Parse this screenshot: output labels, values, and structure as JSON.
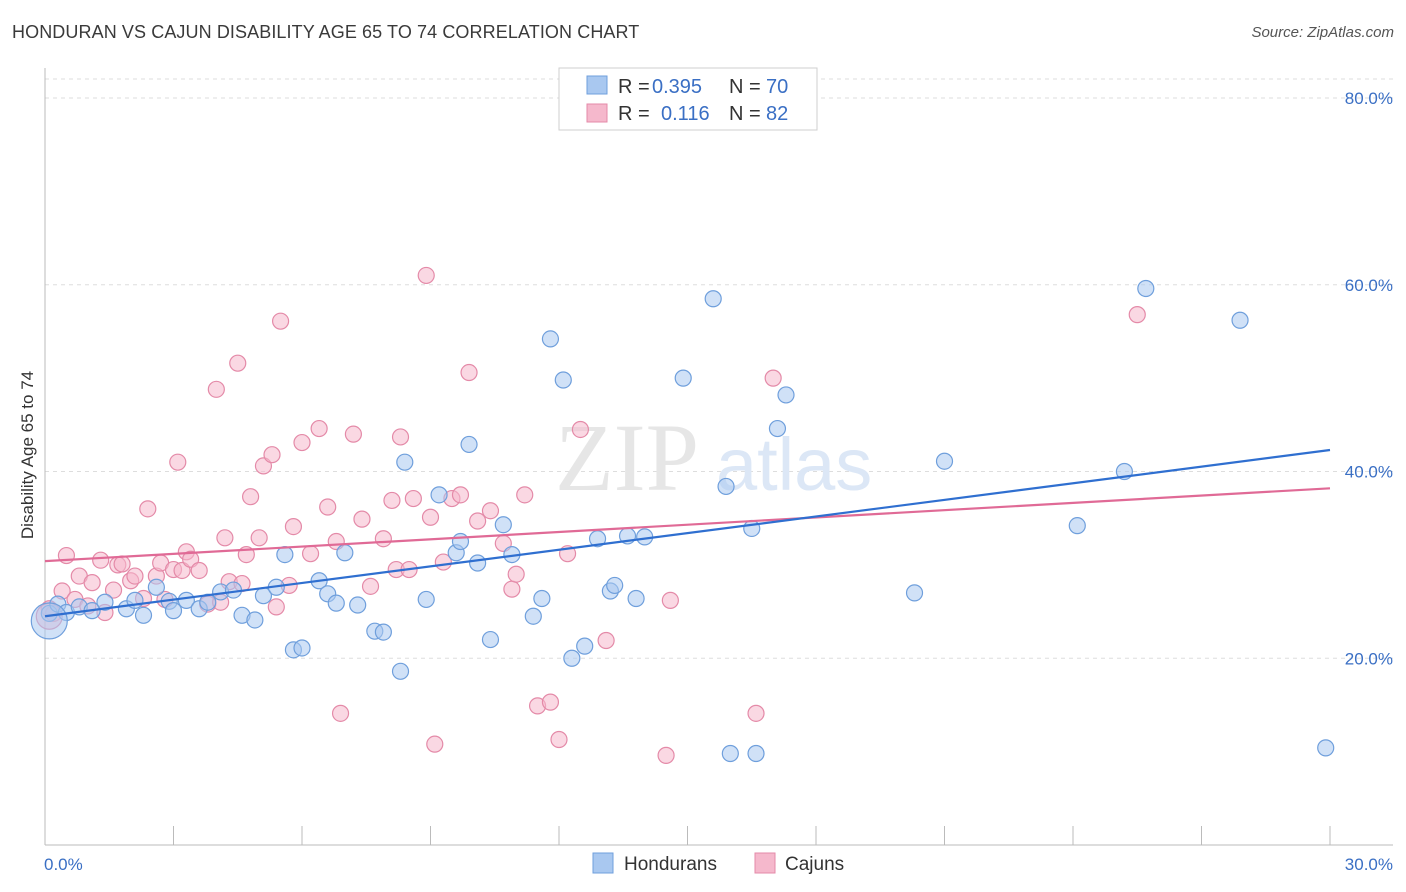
{
  "title": "HONDURAN VS CAJUN DISABILITY AGE 65 TO 74 CORRELATION CHART",
  "source": "Source: ZipAtlas.com",
  "watermark": {
    "zip": "ZIP",
    "atlas": "atlas"
  },
  "colors": {
    "blue_fill": "#a9c8f0",
    "blue_stroke": "#6f9fdc",
    "blue_line": "#2f6fd0",
    "pink_fill": "#f5b8cc",
    "pink_stroke": "#e48aa8",
    "pink_line": "#e06a96",
    "grid": "#dddddd",
    "tick_text": "#3a6fc4"
  },
  "legend": {
    "rows": [
      {
        "r_label": "R =",
        "r_value": "0.395",
        "n_label": "N =",
        "n_value": "70"
      },
      {
        "r_label": "R =",
        "r_value": "0.116",
        "n_label": "N =",
        "n_value": "82"
      }
    ]
  },
  "bottom_legend": [
    "Hondurans",
    "Cajuns"
  ],
  "chart_data": {
    "type": "scatter",
    "title": "HONDURAN VS CAJUN DISABILITY AGE 65 TO 74 CORRELATION CHART",
    "xlabel": "",
    "ylabel": "Disability Age 65 to 74",
    "xlim": [
      0,
      30
    ],
    "ylim": [
      0,
      84
    ],
    "x_tick_labels": [
      "0.0%",
      "30.0%"
    ],
    "y_ticks": [
      20,
      40,
      60,
      80
    ],
    "y_tick_labels": [
      "20.0%",
      "40.0%",
      "60.0%",
      "80.0%"
    ],
    "grid": true,
    "legend_position": "top-center",
    "series": [
      {
        "name": "Hondurans",
        "R": 0.395,
        "N": 70,
        "trend": {
          "x": [
            0,
            30
          ],
          "y": [
            24.5,
            42.3
          ]
        },
        "points": [
          [
            0.1,
            24.8
          ],
          [
            0.3,
            25.8
          ],
          [
            0.5,
            24.9
          ],
          [
            0.8,
            25.5
          ],
          [
            1.1,
            25.1
          ],
          [
            1.4,
            26.0
          ],
          [
            1.9,
            25.3
          ],
          [
            2.1,
            26.2
          ],
          [
            2.3,
            24.6
          ],
          [
            2.6,
            27.6
          ],
          [
            2.9,
            26.1
          ],
          [
            3.0,
            25.1
          ],
          [
            3.3,
            26.2
          ],
          [
            3.6,
            25.3
          ],
          [
            3.8,
            26.0
          ],
          [
            4.1,
            27.1
          ],
          [
            4.4,
            27.3
          ],
          [
            4.6,
            24.6
          ],
          [
            4.9,
            24.1
          ],
          [
            5.1,
            26.7
          ],
          [
            5.4,
            27.6
          ],
          [
            5.6,
            31.1
          ],
          [
            5.8,
            20.9
          ],
          [
            6.0,
            21.1
          ],
          [
            6.4,
            28.3
          ],
          [
            6.6,
            26.9
          ],
          [
            6.8,
            25.9
          ],
          [
            7.0,
            31.3
          ],
          [
            7.3,
            25.7
          ],
          [
            7.7,
            22.9
          ],
          [
            7.9,
            22.8
          ],
          [
            8.3,
            18.6
          ],
          [
            8.4,
            41.0
          ],
          [
            8.9,
            26.3
          ],
          [
            9.2,
            37.5
          ],
          [
            9.6,
            31.3
          ],
          [
            9.7,
            32.5
          ],
          [
            9.9,
            42.9
          ],
          [
            10.1,
            30.2
          ],
          [
            10.4,
            22.0
          ],
          [
            10.7,
            34.3
          ],
          [
            10.9,
            31.1
          ],
          [
            11.4,
            24.5
          ],
          [
            11.6,
            26.4
          ],
          [
            11.8,
            54.2
          ],
          [
            12.1,
            49.8
          ],
          [
            12.3,
            20.0
          ],
          [
            12.6,
            21.3
          ],
          [
            12.9,
            32.8
          ],
          [
            13.2,
            27.2
          ],
          [
            13.3,
            27.8
          ],
          [
            13.6,
            33.1
          ],
          [
            13.8,
            26.4
          ],
          [
            14.0,
            33.0
          ],
          [
            14.9,
            50.0
          ],
          [
            15.6,
            58.5
          ],
          [
            15.9,
            38.4
          ],
          [
            16.0,
            9.8
          ],
          [
            16.5,
            33.9
          ],
          [
            16.6,
            9.8
          ],
          [
            17.1,
            44.6
          ],
          [
            17.3,
            48.2
          ],
          [
            20.3,
            27.0
          ],
          [
            21.0,
            41.1
          ],
          [
            24.1,
            34.2
          ],
          [
            25.2,
            40.0
          ],
          [
            25.7,
            59.6
          ],
          [
            27.9,
            56.2
          ],
          [
            29.9,
            10.4
          ],
          [
            0.1,
            24.0
          ]
        ]
      },
      {
        "name": "Cajuns",
        "R": 0.116,
        "N": 82,
        "trend": {
          "x": [
            0,
            30
          ],
          "y": [
            30.4,
            38.2
          ]
        },
        "points": [
          [
            0.1,
            25.3
          ],
          [
            0.2,
            24.8
          ],
          [
            0.4,
            27.2
          ],
          [
            0.5,
            31.0
          ],
          [
            0.7,
            26.3
          ],
          [
            0.8,
            28.8
          ],
          [
            1.0,
            25.6
          ],
          [
            1.1,
            28.1
          ],
          [
            1.3,
            30.5
          ],
          [
            1.4,
            24.9
          ],
          [
            1.6,
            27.3
          ],
          [
            1.7,
            30.0
          ],
          [
            1.8,
            30.1
          ],
          [
            2.0,
            28.3
          ],
          [
            2.1,
            28.8
          ],
          [
            2.3,
            26.4
          ],
          [
            2.4,
            36.0
          ],
          [
            2.6,
            28.8
          ],
          [
            2.7,
            30.2
          ],
          [
            2.8,
            26.3
          ],
          [
            3.0,
            29.5
          ],
          [
            3.1,
            41.0
          ],
          [
            3.2,
            29.4
          ],
          [
            3.3,
            31.4
          ],
          [
            3.4,
            30.6
          ],
          [
            3.6,
            29.4
          ],
          [
            3.8,
            25.8
          ],
          [
            4.0,
            48.8
          ],
          [
            4.1,
            26.0
          ],
          [
            4.2,
            32.9
          ],
          [
            4.3,
            28.2
          ],
          [
            4.5,
            51.6
          ],
          [
            4.6,
            28.0
          ],
          [
            4.7,
            31.1
          ],
          [
            4.8,
            37.3
          ],
          [
            5.0,
            32.9
          ],
          [
            5.1,
            40.6
          ],
          [
            5.3,
            41.8
          ],
          [
            5.4,
            25.5
          ],
          [
            5.5,
            56.1
          ],
          [
            5.7,
            27.8
          ],
          [
            5.8,
            34.1
          ],
          [
            6.0,
            43.1
          ],
          [
            6.2,
            31.2
          ],
          [
            6.4,
            44.6
          ],
          [
            6.6,
            36.2
          ],
          [
            6.8,
            32.5
          ],
          [
            6.9,
            14.1
          ],
          [
            7.2,
            44.0
          ],
          [
            7.4,
            34.9
          ],
          [
            7.6,
            27.7
          ],
          [
            7.9,
            32.8
          ],
          [
            8.1,
            36.9
          ],
          [
            8.2,
            29.5
          ],
          [
            8.3,
            43.7
          ],
          [
            8.5,
            29.5
          ],
          [
            8.6,
            37.1
          ],
          [
            8.9,
            61.0
          ],
          [
            9.0,
            35.1
          ],
          [
            9.1,
            10.8
          ],
          [
            9.3,
            30.3
          ],
          [
            9.5,
            37.1
          ],
          [
            9.7,
            37.5
          ],
          [
            9.9,
            50.6
          ],
          [
            10.1,
            34.7
          ],
          [
            10.4,
            35.8
          ],
          [
            10.7,
            32.3
          ],
          [
            10.9,
            27.4
          ],
          [
            11.0,
            29.0
          ],
          [
            11.2,
            37.5
          ],
          [
            11.5,
            14.9
          ],
          [
            11.8,
            15.3
          ],
          [
            12.0,
            11.3
          ],
          [
            12.2,
            31.2
          ],
          [
            12.5,
            44.5
          ],
          [
            13.1,
            21.9
          ],
          [
            14.5,
            9.6
          ],
          [
            14.6,
            26.2
          ],
          [
            17.0,
            50.0
          ],
          [
            16.6,
            14.1
          ],
          [
            25.5,
            56.8
          ],
          [
            0.1,
            24.5
          ]
        ]
      }
    ]
  }
}
